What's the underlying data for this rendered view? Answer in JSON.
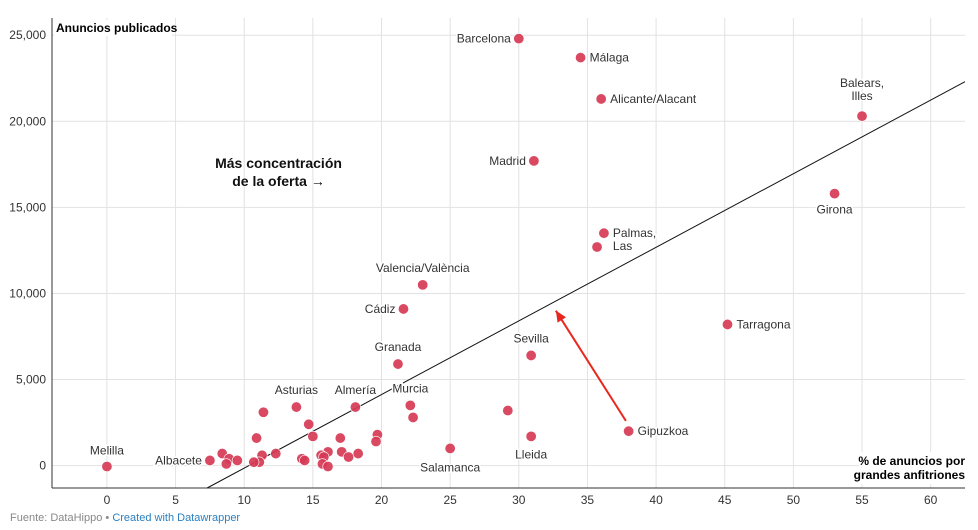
{
  "chart_data": {
    "type": "scatter",
    "ylabel": "Anuncios publicados",
    "xlabel": [
      "% de anuncios por",
      "grandes anfitriones"
    ],
    "xlim": [
      -4,
      62.5
    ],
    "ylim": [
      -1300,
      26000
    ],
    "xticks": [
      0,
      5,
      10,
      15,
      20,
      25,
      30,
      35,
      40,
      45,
      50,
      55,
      60
    ],
    "yticks": [
      0,
      5000,
      10000,
      15000,
      20000,
      25000
    ],
    "ytick_labels": [
      "0",
      "5,000",
      "10,000",
      "15,000",
      "20,000",
      "25,000"
    ],
    "grid": true,
    "point_color": "#d63a55",
    "trendline": {
      "x1": 7.3,
      "y1": -1300,
      "x2": 62.5,
      "y2": 22300
    },
    "annotation": {
      "lines": [
        "Más concentración",
        "de la oferta →"
      ],
      "x": 12.5,
      "y": 17300
    },
    "arrow": {
      "from": [
        37.8,
        2600
      ],
      "to": [
        32.7,
        9000
      ],
      "color": "#e8271e"
    },
    "points": [
      {
        "name": "Barcelona",
        "x": 30.0,
        "y": 24800
      },
      {
        "name": "Málaga",
        "x": 34.5,
        "y": 23700
      },
      {
        "name": "Alicante/Alacant",
        "x": 36.0,
        "y": 21300
      },
      {
        "name": "Balears, Illes",
        "x": 55.0,
        "y": 20300
      },
      {
        "name": "Madrid",
        "x": 31.1,
        "y": 17700
      },
      {
        "name": "Girona",
        "x": 53.0,
        "y": 15800
      },
      {
        "name": "Palmas, Las",
        "x": 36.2,
        "y": 13500
      },
      {
        "name": "",
        "x": 35.7,
        "y": 12700
      },
      {
        "name": "Valencia/València",
        "x": 23.0,
        "y": 10500
      },
      {
        "name": "Cádiz",
        "x": 21.6,
        "y": 9100
      },
      {
        "name": "Tarragona",
        "x": 45.2,
        "y": 8200
      },
      {
        "name": "Sevilla",
        "x": 30.9,
        "y": 6400
      },
      {
        "name": "Granada",
        "x": 21.2,
        "y": 5900
      },
      {
        "name": "Murcia",
        "x": 22.1,
        "y": 3500
      },
      {
        "name": "",
        "x": 22.3,
        "y": 2800
      },
      {
        "name": "Almería",
        "x": 18.1,
        "y": 3400
      },
      {
        "name": "Asturias",
        "x": 13.8,
        "y": 3400
      },
      {
        "name": "",
        "x": 29.2,
        "y": 3200
      },
      {
        "name": "",
        "x": 11.4,
        "y": 3100
      },
      {
        "name": "",
        "x": 14.7,
        "y": 2400
      },
      {
        "name": "Gipuzkoa",
        "x": 38.0,
        "y": 2000
      },
      {
        "name": "",
        "x": 19.7,
        "y": 1800
      },
      {
        "name": "Lleida",
        "x": 30.9,
        "y": 1700
      },
      {
        "name": "",
        "x": 10.9,
        "y": 1600
      },
      {
        "name": "",
        "x": 15.0,
        "y": 1700
      },
      {
        "name": "",
        "x": 17.0,
        "y": 1600
      },
      {
        "name": "",
        "x": 19.6,
        "y": 1400
      },
      {
        "name": "Salamanca",
        "x": 25.0,
        "y": 1000
      },
      {
        "name": "",
        "x": 16.1,
        "y": 800
      },
      {
        "name": "",
        "x": 17.1,
        "y": 800
      },
      {
        "name": "",
        "x": 18.3,
        "y": 700
      },
      {
        "name": "",
        "x": 12.3,
        "y": 700
      },
      {
        "name": "",
        "x": 8.4,
        "y": 700
      },
      {
        "name": "",
        "x": 11.3,
        "y": 600
      },
      {
        "name": "",
        "x": 15.6,
        "y": 600
      },
      {
        "name": "",
        "x": 17.6,
        "y": 500
      },
      {
        "name": "",
        "x": 15.8,
        "y": 500
      },
      {
        "name": "",
        "x": 8.9,
        "y": 400
      },
      {
        "name": "",
        "x": 14.2,
        "y": 400
      },
      {
        "name": "",
        "x": 14.4,
        "y": 300
      },
      {
        "name": "Albacete",
        "x": 7.5,
        "y": 300
      },
      {
        "name": "",
        "x": 9.5,
        "y": 300
      },
      {
        "name": "",
        "x": 11.1,
        "y": 200
      },
      {
        "name": "",
        "x": 10.7,
        "y": 200
      },
      {
        "name": "",
        "x": 15.7,
        "y": 100
      },
      {
        "name": "",
        "x": 8.7,
        "y": 100
      },
      {
        "name": "",
        "x": 16.1,
        "y": -50
      },
      {
        "name": "Melilla",
        "x": 0.0,
        "y": -50
      }
    ]
  },
  "footer": {
    "source": "Fuente: DataHippo",
    "separator": " • ",
    "link": "Created with Datawrapper"
  }
}
